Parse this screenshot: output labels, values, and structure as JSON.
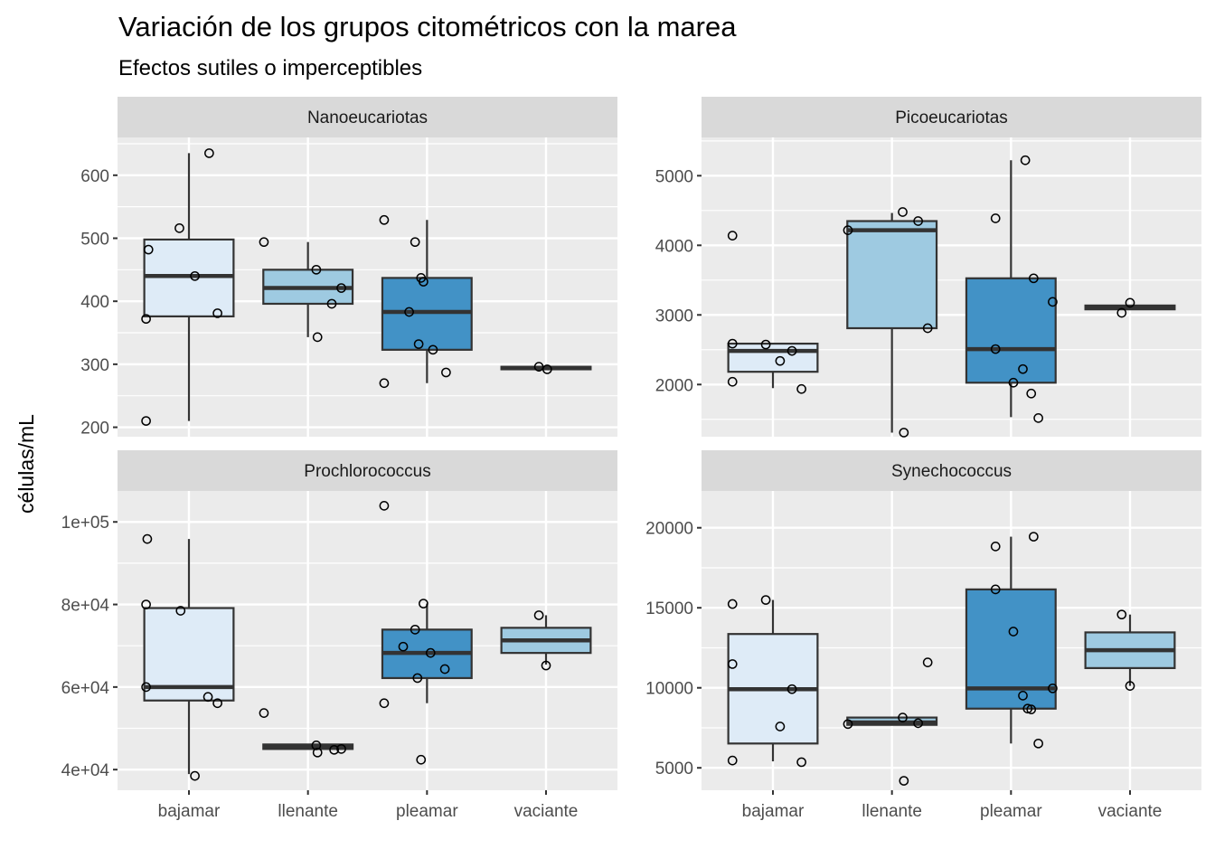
{
  "chart_data": {
    "type": "boxplot",
    "title": "Variación de los grupos citométricos con la marea",
    "subtitle": "Efectos sutiles o imperceptibles",
    "xlabel": "",
    "ylabel": "células/mL",
    "categories": [
      "bajamar",
      "llenante",
      "pleamar",
      "vaciante"
    ],
    "fill_colors": {
      "bajamar": "#deebf7",
      "llenante": "#9ecae1",
      "pleamar": "#4292c6",
      "vaciante": "#9ecae1"
    },
    "colors": {
      "panel_bg": "#ebebeb",
      "grid": "#ffffff",
      "strip_bg": "#d9d9d9",
      "box_line": "#333333",
      "point_stroke": "#000000",
      "tick_text": "#4d4d4d"
    },
    "grid": true,
    "legend": "none",
    "panels": [
      {
        "name": "Nanoeucariotas",
        "ylim": [
          185,
          660
        ],
        "yticks": [
          200,
          300,
          400,
          500,
          600
        ],
        "ytick_labels": [
          "200",
          "300",
          "400",
          "500",
          "600"
        ],
        "yminor": [
          250,
          350,
          450,
          550,
          650
        ],
        "groups": [
          {
            "category": "bajamar",
            "q1": 376,
            "median": 440,
            "q3": 498,
            "whisker_low": 210,
            "whisker_high": 635,
            "points": [
              [
                0.17,
                635
              ],
              [
                -0.08,
                516
              ],
              [
                -0.34,
                482
              ],
              [
                0.05,
                440
              ],
              [
                -0.36,
                372
              ],
              [
                0.24,
                381
              ],
              [
                -0.36,
                210
              ]
            ]
          },
          {
            "category": "llenante",
            "q1": 396,
            "median": 421,
            "q3": 450,
            "whisker_low": 343,
            "whisker_high": 494,
            "points": [
              [
                -0.37,
                494
              ],
              [
                0.07,
                450
              ],
              [
                0.28,
                421
              ],
              [
                0.2,
                396
              ],
              [
                0.08,
                343
              ]
            ]
          },
          {
            "category": "pleamar",
            "q1": 323,
            "median": 383,
            "q3": 437,
            "whisker_low": 270,
            "whisker_high": 529,
            "points": [
              [
                -0.36,
                529
              ],
              [
                -0.1,
                494
              ],
              [
                -0.05,
                437
              ],
              [
                -0.03,
                431
              ],
              [
                -0.15,
                383
              ],
              [
                -0.07,
                332
              ],
              [
                0.05,
                323
              ],
              [
                0.16,
                287
              ],
              [
                -0.36,
                270
              ]
            ]
          },
          {
            "category": "vaciante",
            "q1": 292,
            "median": 294,
            "q3": 296,
            "whisker_low": 292,
            "whisker_high": 296,
            "points": [
              [
                -0.06,
                296
              ],
              [
                0.01,
                292
              ]
            ]
          }
        ]
      },
      {
        "name": "Picoeucariotas",
        "ylim": [
          1250,
          5550
        ],
        "yticks": [
          2000,
          3000,
          4000,
          5000
        ],
        "ytick_labels": [
          "2000",
          "3000",
          "4000",
          "5000"
        ],
        "yminor": [
          1500,
          2500,
          3500,
          4500,
          5500
        ],
        "groups": [
          {
            "category": "bajamar",
            "q1": 2183,
            "median": 2483,
            "q3": 2587,
            "whisker_low": 1948,
            "whisker_high": 2587,
            "points": [
              [
                -0.34,
                4139
              ],
              [
                -0.34,
                2587
              ],
              [
                -0.06,
                2574
              ],
              [
                0.16,
                2483
              ],
              [
                0.06,
                2339
              ],
              [
                -0.34,
                2039
              ],
              [
                0.24,
                1935
              ]
            ]
          },
          {
            "category": "llenante",
            "q1": 2809,
            "median": 4217,
            "q3": 4348,
            "whisker_low": 1309,
            "whisker_high": 4465,
            "points": [
              [
                -0.37,
                4217
              ],
              [
                0.09,
                4478
              ],
              [
                0.22,
                4348
              ],
              [
                0.3,
                2809
              ],
              [
                0.1,
                1309
              ]
            ]
          },
          {
            "category": "pleamar",
            "q1": 2026,
            "median": 2509,
            "q3": 3526,
            "whisker_low": 1531,
            "whisker_high": 5222,
            "points": [
              [
                0.12,
                5222
              ],
              [
                -0.13,
                4387
              ],
              [
                0.19,
                3526
              ],
              [
                0.35,
                3187
              ],
              [
                -0.13,
                2509
              ],
              [
                0.1,
                2222
              ],
              [
                0.02,
                2026
              ],
              [
                0.17,
                1870
              ],
              [
                0.23,
                1518
              ]
            ]
          },
          {
            "category": "vaciante",
            "q1": 3080,
            "median": 3109,
            "q3": 3135,
            "whisker_low": 3080,
            "whisker_high": 3135,
            "points": [
              [
                0.0,
                3174
              ],
              [
                -0.07,
                3030
              ]
            ]
          }
        ]
      },
      {
        "name": "Prochlorococcus",
        "ylim": [
          35000,
          107500
        ],
        "yticks": [
          40000,
          60000,
          80000,
          100000
        ],
        "ytick_labels": [
          "4e+04",
          "6e+04",
          "8e+04",
          "1e+05"
        ],
        "yminor": [
          50000,
          70000,
          90000
        ],
        "groups": [
          {
            "category": "bajamar",
            "q1": 56739,
            "median": 60000,
            "q3": 79130,
            "whisker_low": 38913,
            "whisker_high": 95870,
            "points": [
              [
                -0.35,
                95870
              ],
              [
                -0.36,
                80000
              ],
              [
                -0.07,
                78478
              ],
              [
                -0.36,
                60000
              ],
              [
                0.16,
                57609
              ],
              [
                0.24,
                56087
              ],
              [
                0.05,
                38478
              ]
            ]
          },
          {
            "category": "llenante",
            "q1": 45000,
            "median": 45435,
            "q3": 46087,
            "whisker_low": 45000,
            "whisker_high": 46087,
            "points": [
              [
                -0.37,
                53696
              ],
              [
                0.07,
                45870
              ],
              [
                0.08,
                44130
              ],
              [
                0.22,
                44783
              ],
              [
                0.28,
                45000
              ]
            ]
          },
          {
            "category": "pleamar",
            "q1": 62174,
            "median": 68261,
            "q3": 73913,
            "whisker_low": 56087,
            "whisker_high": 80217,
            "points": [
              [
                -0.36,
                103913
              ],
              [
                -0.03,
                80217
              ],
              [
                -0.1,
                73913
              ],
              [
                -0.2,
                69783
              ],
              [
                0.03,
                68261
              ],
              [
                0.15,
                64348
              ],
              [
                -0.08,
                62174
              ],
              [
                -0.36,
                56087
              ],
              [
                -0.05,
                42391
              ]
            ]
          },
          {
            "category": "vaciante",
            "q1": 68261,
            "median": 71304,
            "q3": 74348,
            "whisker_low": 65435,
            "whisker_high": 77391,
            "points": [
              [
                -0.06,
                77391
              ],
              [
                0.0,
                65217
              ]
            ]
          }
        ]
      },
      {
        "name": "Synechococcus",
        "ylim": [
          3600,
          22300
        ],
        "yticks": [
          5000,
          10000,
          15000,
          20000
        ],
        "ytick_labels": [
          "5000",
          "10000",
          "15000",
          "20000"
        ],
        "yminor": [
          7500,
          12500,
          17500
        ],
        "groups": [
          {
            "category": "bajamar",
            "q1": 6520,
            "median": 9916,
            "q3": 13362,
            "whisker_low": 5405,
            "whisker_high": 15490,
            "points": [
              [
                -0.34,
                15236
              ],
              [
                -0.06,
                15490
              ],
              [
                -0.34,
                11486
              ],
              [
                0.16,
                9916
              ],
              [
                0.06,
                7584
              ],
              [
                -0.34,
                5456
              ],
              [
                0.24,
                5355
              ]
            ]
          },
          {
            "category": "llenante",
            "q1": 7686,
            "median": 7838,
            "q3": 8142,
            "whisker_low": 7686,
            "whisker_high": 8142,
            "points": [
              [
                0.3,
                11588
              ],
              [
                0.09,
                8142
              ],
              [
                -0.37,
                7736
              ],
              [
                0.22,
                7787
              ],
              [
                0.1,
                4189
              ]
            ]
          },
          {
            "category": "pleamar",
            "q1": 8699,
            "median": 9966,
            "q3": 16149,
            "whisker_low": 6520,
            "whisker_high": 19443,
            "points": [
              [
                0.19,
                19443
              ],
              [
                -0.13,
                18834
              ],
              [
                -0.13,
                16149
              ],
              [
                0.02,
                13514
              ],
              [
                0.35,
                9966
              ],
              [
                0.1,
                9510
              ],
              [
                0.14,
                8699
              ],
              [
                0.17,
                8648
              ],
              [
                0.23,
                6520
              ]
            ]
          },
          {
            "category": "vaciante",
            "q1": 11233,
            "median": 12348,
            "q3": 13463,
            "whisker_low": 10118,
            "whisker_high": 14578,
            "points": [
              [
                -0.07,
                14578
              ],
              [
                0.0,
                10118
              ]
            ]
          }
        ]
      }
    ]
  }
}
